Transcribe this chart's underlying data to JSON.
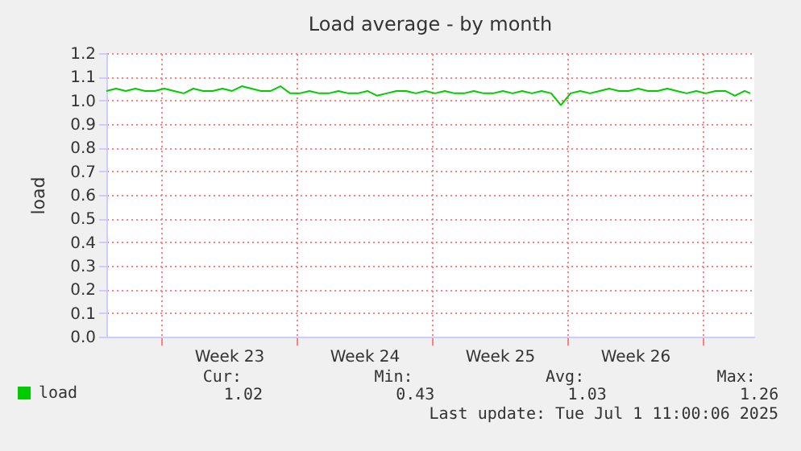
{
  "chart_data": {
    "type": "line",
    "title": "Load average - by month",
    "ylabel": "load",
    "x": [
      "2025-05-29T04:00",
      "2025-05-29T16:00",
      "2025-05-30T04:00",
      "2025-05-30T16:00",
      "2025-05-31T04:00",
      "2025-05-31T16:00",
      "2025-06-01T04:00",
      "2025-06-01T16:00",
      "2025-06-02T04:00",
      "2025-06-02T16:00",
      "2025-06-03T04:00",
      "2025-06-03T16:00",
      "2025-06-04T04:00",
      "2025-06-04T16:00",
      "2025-06-05T04:00",
      "2025-06-05T16:00",
      "2025-06-06T04:00",
      "2025-06-06T16:00",
      "2025-06-07T04:00",
      "2025-06-07T16:00",
      "2025-06-08T04:00",
      "2025-06-08T16:00",
      "2025-06-09T04:00",
      "2025-06-09T16:00",
      "2025-06-10T04:00",
      "2025-06-10T16:00",
      "2025-06-11T04:00",
      "2025-06-11T16:00",
      "2025-06-12T04:00",
      "2025-06-12T16:00",
      "2025-06-13T04:00",
      "2025-06-13T16:00",
      "2025-06-14T04:00",
      "2025-06-14T16:00",
      "2025-06-15T04:00",
      "2025-06-15T16:00",
      "2025-06-16T04:00",
      "2025-06-16T16:00",
      "2025-06-17T04:00",
      "2025-06-17T16:00",
      "2025-06-18T04:00",
      "2025-06-18T16:00",
      "2025-06-19T04:00",
      "2025-06-19T16:00",
      "2025-06-20T04:00",
      "2025-06-20T16:00",
      "2025-06-21T04:00",
      "2025-06-21T16:00",
      "2025-06-22T04:00",
      "2025-06-22T16:00",
      "2025-06-23T04:00",
      "2025-06-23T16:00",
      "2025-06-24T04:00",
      "2025-06-24T16:00",
      "2025-06-25T04:00",
      "2025-06-25T16:00",
      "2025-06-26T04:00",
      "2025-06-26T16:00",
      "2025-06-27T04:00",
      "2025-06-27T16:00",
      "2025-06-28T04:00",
      "2025-06-28T16:00",
      "2025-06-29T04:00",
      "2025-06-29T16:00",
      "2025-06-30T04:00",
      "2025-06-30T16:00",
      "2025-07-01T04:00",
      "2025-07-01T11:00"
    ],
    "series": [
      {
        "name": "load",
        "color": "#00cc00",
        "values": [
          1.04,
          1.05,
          1.04,
          1.05,
          1.04,
          1.04,
          1.05,
          1.04,
          1.03,
          1.05,
          1.04,
          1.04,
          1.05,
          1.04,
          1.06,
          1.05,
          1.04,
          1.04,
          1.06,
          1.03,
          1.03,
          1.04,
          1.03,
          1.03,
          1.04,
          1.03,
          1.03,
          1.04,
          1.02,
          1.03,
          1.04,
          1.04,
          1.03,
          1.04,
          1.03,
          1.04,
          1.03,
          1.03,
          1.04,
          1.03,
          1.03,
          1.04,
          1.03,
          1.04,
          1.03,
          1.04,
          1.03,
          0.98,
          1.03,
          1.04,
          1.03,
          1.04,
          1.05,
          1.04,
          1.04,
          1.05,
          1.04,
          1.04,
          1.05,
          1.04,
          1.03,
          1.04,
          1.03,
          1.04,
          1.04,
          1.02,
          1.04,
          1.03
        ]
      }
    ],
    "xlim": [
      "2025-05-29T04:00",
      "2025-07-01T16:00"
    ],
    "xticks": [
      {
        "value": "2025-06-01",
        "label": null
      },
      {
        "value": "2025-06-04T12:00",
        "label": "Week 23"
      },
      {
        "value": "2025-06-08",
        "label": null
      },
      {
        "value": "2025-06-11T12:00",
        "label": "Week 24"
      },
      {
        "value": "2025-06-15",
        "label": null
      },
      {
        "value": "2025-06-18T12:00",
        "label": "Week 25"
      },
      {
        "value": "2025-06-22",
        "label": null
      },
      {
        "value": "2025-06-25T12:00",
        "label": "Week 26"
      },
      {
        "value": "2025-06-29",
        "label": null
      }
    ],
    "ylim": [
      0,
      1.2
    ],
    "yticks": [
      {
        "value": 0,
        "label": "0.0"
      },
      0.1,
      0.2,
      0.3,
      0.4,
      0.5,
      0.6,
      0.7,
      0.8,
      0.9,
      {
        "value": 1,
        "label": "1.0"
      },
      1.1,
      1.2
    ],
    "grid": true,
    "legend": "bottom left",
    "annotations": [
      "Cur:",
      "Min:",
      "Avg:",
      "Max:",
      "1.02",
      "0.43",
      "1.03",
      "1.26",
      "Last update: Tue Jul  1 11:00:06 2025"
    ]
  }
}
